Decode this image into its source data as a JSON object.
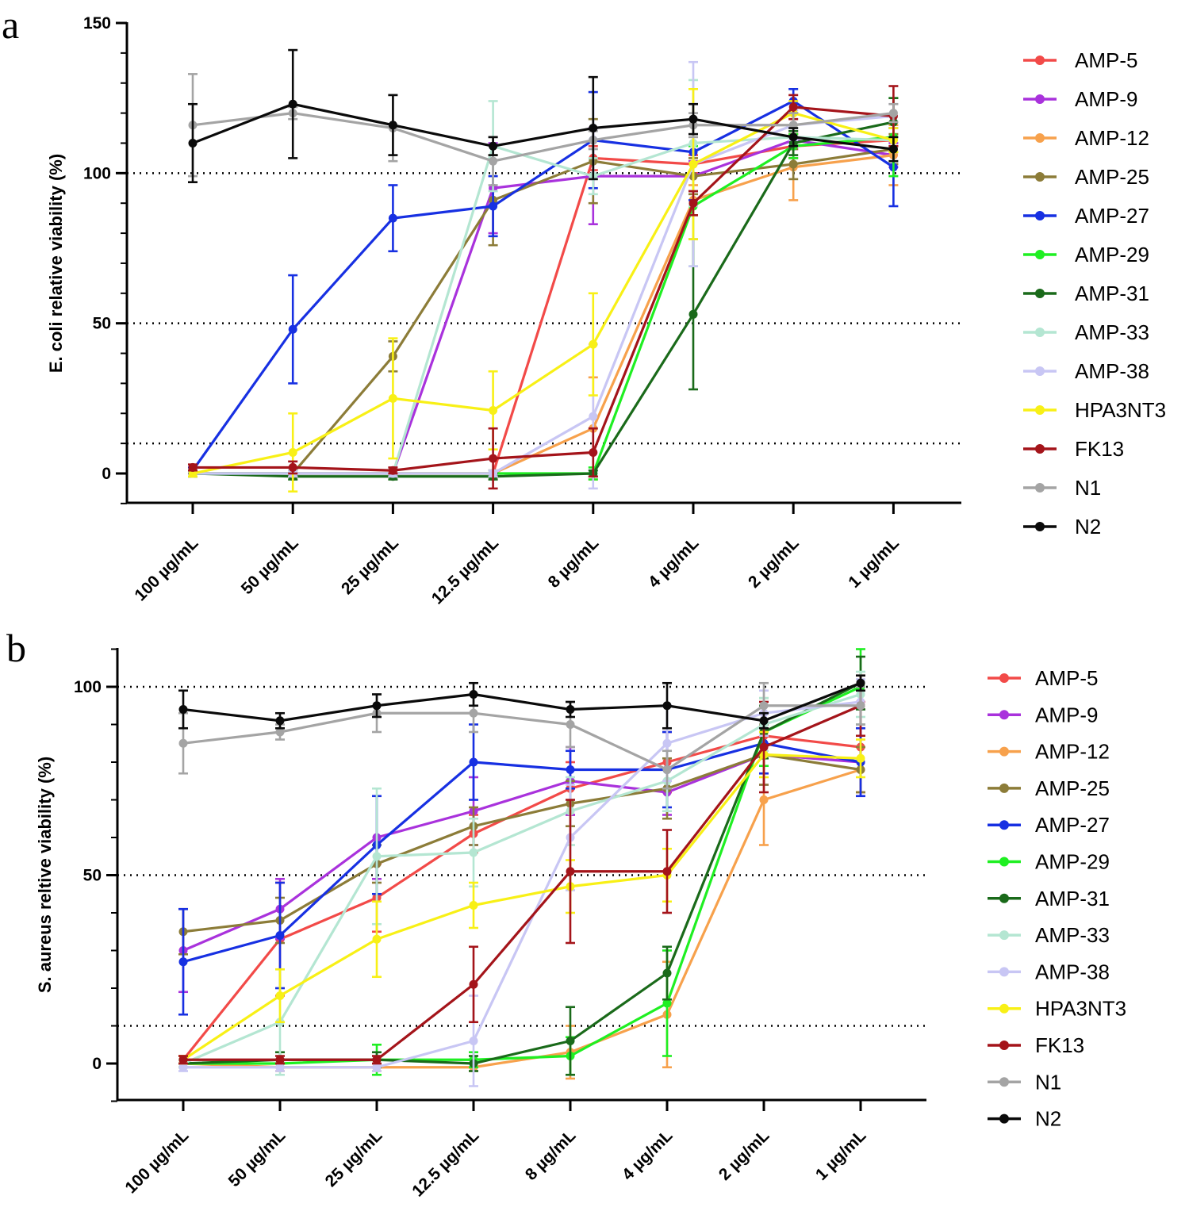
{
  "chart_data": [
    {
      "panel_label": "a",
      "type": "line",
      "ylabel": "E. coli relative viability (%)",
      "xlabel": "",
      "categories": [
        "100 µg/mL",
        "50 µg/mL",
        "25 µg/mL",
        "12.5 µg/mL",
        "8 µg/mL",
        "4 µg/mL",
        "2 µg/mL",
        "1 µg/mL"
      ],
      "ylim": [
        -10,
        150
      ],
      "yticks": [
        0,
        50,
        100,
        150
      ],
      "reference_lines": [
        10,
        50,
        100
      ],
      "legend_position": "right",
      "series": [
        {
          "name": "AMP-5",
          "color": "#f24a48",
          "values": [
            0,
            0,
            0,
            0,
            105,
            103,
            109,
            111
          ],
          "errors": [
            1,
            1,
            1,
            1,
            4,
            3,
            4,
            4
          ]
        },
        {
          "name": "AMP-9",
          "color": "#a932dc",
          "values": [
            0,
            0,
            0,
            95,
            99,
            99,
            111,
            106
          ],
          "errors": [
            1,
            1,
            1,
            15,
            16,
            5,
            3,
            4
          ]
        },
        {
          "name": "AMP-12",
          "color": "#f7a14c",
          "values": [
            0,
            0,
            0,
            0,
            15,
            91,
            102,
            106
          ],
          "errors": [
            1,
            1,
            1,
            1,
            17,
            5,
            11,
            10
          ]
        },
        {
          "name": "AMP-25",
          "color": "#8c7c38",
          "values": [
            0,
            0,
            39,
            91,
            104,
            99,
            103,
            108
          ],
          "errors": [
            1,
            1,
            5,
            15,
            14,
            6,
            5,
            5
          ]
        },
        {
          "name": "AMP-27",
          "color": "#1730e2",
          "values": [
            1,
            48,
            85,
            89,
            111,
            107,
            124,
            102
          ],
          "errors": [
            1,
            18,
            11,
            10,
            16,
            16,
            4,
            13
          ]
        },
        {
          "name": "AMP-29",
          "color": "#1fef22",
          "values": [
            0,
            0,
            0,
            0,
            0,
            89,
            109,
            112
          ],
          "errors": [
            1,
            1,
            1,
            1,
            2,
            20,
            4,
            13
          ]
        },
        {
          "name": "AMP-31",
          "color": "#1a6a1a",
          "values": [
            0,
            -1,
            -1,
            -1,
            0,
            53,
            110,
            117
          ],
          "errors": [
            1,
            1,
            1,
            1,
            1,
            25,
            4,
            8
          ]
        },
        {
          "name": "AMP-33",
          "color": "#b4e6d2",
          "values": [
            0,
            0,
            0,
            109,
            99,
            110,
            112,
            111
          ],
          "errors": [
            1,
            1,
            1,
            15,
            6,
            21,
            3,
            4
          ]
        },
        {
          "name": "AMP-38",
          "color": "#c8c6f4",
          "values": [
            0,
            0,
            0,
            0,
            19,
            103,
            116,
            119
          ],
          "errors": [
            1,
            1,
            1,
            1,
            24,
            34,
            5,
            4
          ]
        },
        {
          "name": "HPA3NT3",
          "color": "#f8f016",
          "values": [
            0,
            7,
            25,
            21,
            43,
            103,
            120,
            111
          ],
          "errors": [
            1,
            13,
            20,
            13,
            17,
            25,
            4,
            4
          ]
        },
        {
          "name": "FK13",
          "color": "#a4141a",
          "values": [
            2,
            2,
            1,
            5,
            7,
            90,
            122,
            119
          ],
          "errors": [
            1,
            2,
            1,
            10,
            8,
            4,
            4,
            10
          ]
        },
        {
          "name": "N1",
          "color": "#a4a4a4",
          "values": [
            116,
            120,
            115,
            104,
            111,
            116,
            116,
            120
          ],
          "errors": [
            17,
            2,
            11,
            8,
            3,
            4,
            4,
            3
          ]
        },
        {
          "name": "N2",
          "color": "#0a0a0a",
          "values": [
            110,
            123,
            116,
            109,
            115,
            118,
            112,
            108
          ],
          "errors": [
            13,
            18,
            10,
            3,
            17,
            5,
            3,
            4
          ]
        }
      ]
    },
    {
      "panel_label": "b",
      "type": "line",
      "ylabel": "S. aureus reltive viability (%)",
      "xlabel": "",
      "categories": [
        "100 µg/mL",
        "50 µg/mL",
        "25 µg/mL",
        "12.5 µg/mL",
        "8 µg/mL",
        "4 µg/mL",
        "2 µg/mL",
        "1 µg/mL"
      ],
      "ylim": [
        -10,
        110
      ],
      "yticks": [
        0,
        50,
        100
      ],
      "reference_lines": [
        10,
        50,
        100
      ],
      "legend_position": "right",
      "series": [
        {
          "name": "AMP-5",
          "color": "#f24a48",
          "values": [
            1,
            33,
            44,
            61,
            73,
            80,
            87,
            84
          ],
          "errors": [
            1,
            15,
            9,
            5,
            7,
            8,
            10,
            12
          ]
        },
        {
          "name": "AMP-9",
          "color": "#a932dc",
          "values": [
            30,
            41,
            60,
            67,
            75,
            72,
            82,
            80
          ],
          "errors": [
            11,
            8,
            11,
            9,
            9,
            6,
            8,
            9
          ]
        },
        {
          "name": "AMP-12",
          "color": "#f7a14c",
          "values": [
            0,
            -1,
            -1,
            -1,
            3,
            13,
            70,
            78
          ],
          "errors": [
            1,
            1,
            1,
            1,
            7,
            14,
            12,
            6
          ]
        },
        {
          "name": "AMP-25",
          "color": "#8c7c38",
          "values": [
            35,
            38,
            53,
            63,
            69,
            73,
            82,
            78
          ],
          "errors": [
            6,
            6,
            5,
            5,
            6,
            8,
            8,
            6
          ]
        },
        {
          "name": "AMP-27",
          "color": "#1730e2",
          "values": [
            27,
            34,
            58,
            80,
            78,
            78,
            85,
            80
          ],
          "errors": [
            14,
            14,
            13,
            10,
            5,
            10,
            8,
            9
          ]
        },
        {
          "name": "AMP-29",
          "color": "#1fef22",
          "values": [
            0,
            0,
            1,
            1,
            2,
            16,
            88,
            100
          ],
          "errors": [
            1,
            1,
            4,
            2,
            5,
            14,
            9,
            10
          ]
        },
        {
          "name": "AMP-31",
          "color": "#1a6a1a",
          "values": [
            0,
            1,
            1,
            0,
            6,
            24,
            88,
            101
          ],
          "errors": [
            1,
            2,
            2,
            2,
            9,
            7,
            7,
            7
          ]
        },
        {
          "name": "AMP-33",
          "color": "#b4e6d2",
          "values": [
            0,
            11,
            55,
            56,
            67,
            75,
            90,
            98
          ],
          "errors": [
            1,
            14,
            18,
            9,
            9,
            8,
            7,
            6
          ]
        },
        {
          "name": "AMP-38",
          "color": "#c8c6f4",
          "values": [
            -1,
            -1,
            -1,
            6,
            60,
            85,
            93,
            96
          ],
          "errors": [
            1,
            1,
            1,
            12,
            14,
            10,
            6,
            6
          ]
        },
        {
          "name": "HPA3NT3",
          "color": "#f8f016",
          "values": [
            1,
            18,
            33,
            42,
            47,
            50,
            82,
            81
          ],
          "errors": [
            1,
            7,
            10,
            6,
            7,
            7,
            6,
            5
          ]
        },
        {
          "name": "FK13",
          "color": "#a4141a",
          "values": [
            1,
            1,
            1,
            21,
            51,
            51,
            84,
            95
          ],
          "errors": [
            1,
            1,
            1,
            10,
            19,
            11,
            12,
            8
          ]
        },
        {
          "name": "N1",
          "color": "#a4a4a4",
          "values": [
            85,
            88,
            93,
            93,
            90,
            78,
            95,
            95
          ],
          "errors": [
            8,
            2,
            5,
            5,
            6,
            5,
            6,
            5
          ]
        },
        {
          "name": "N2",
          "color": "#0a0a0a",
          "values": [
            94,
            91,
            95,
            98,
            94,
            95,
            91,
            101
          ],
          "errors": [
            5,
            2,
            3,
            3,
            2,
            6,
            2,
            2
          ]
        }
      ]
    }
  ]
}
